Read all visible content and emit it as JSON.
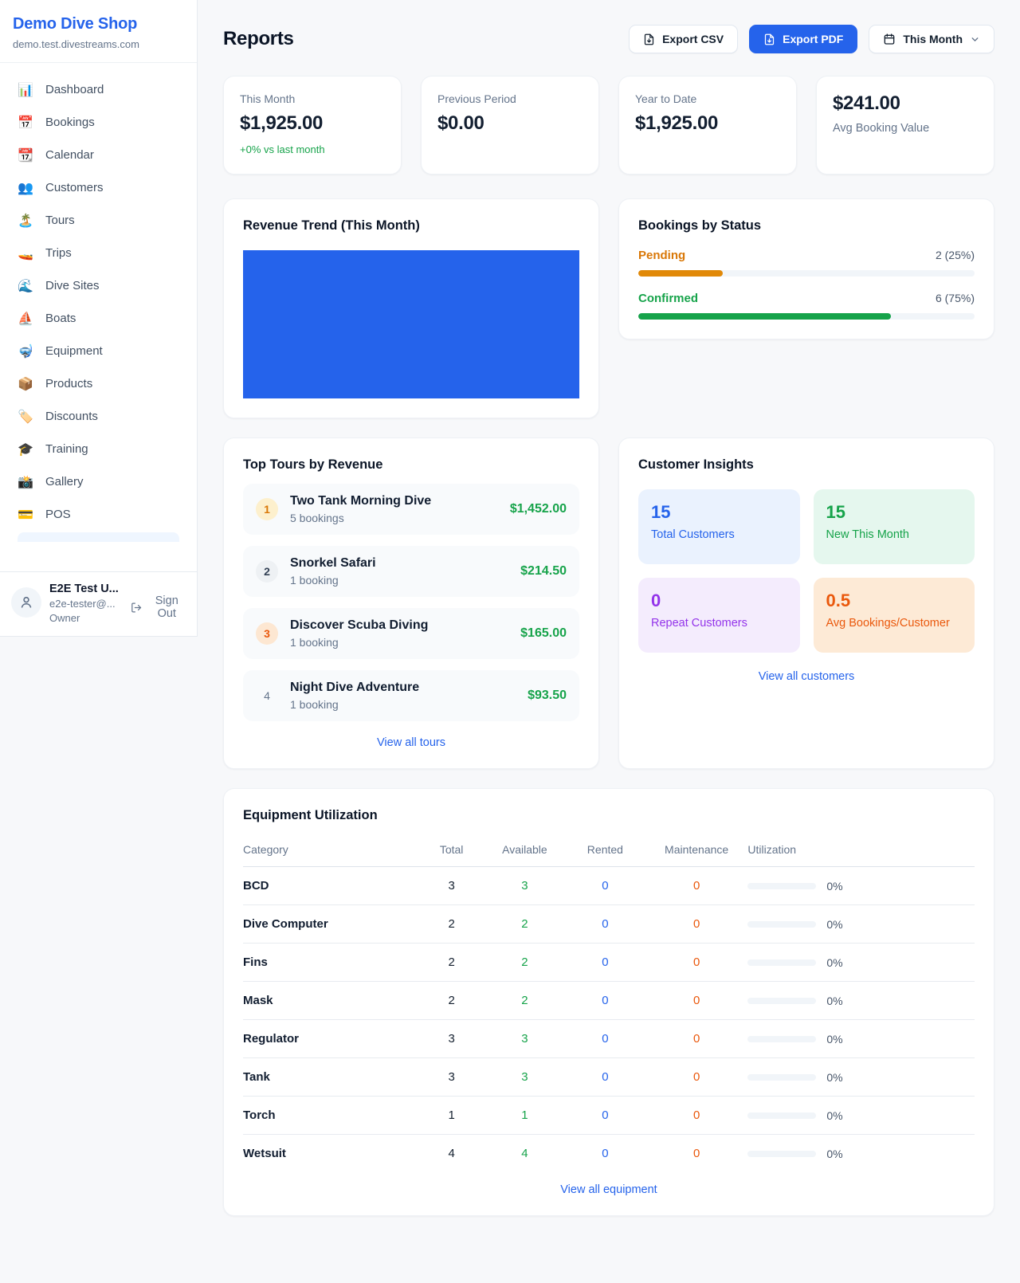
{
  "colors": {
    "brand_blue": "#2563eb",
    "green": "#16a34a",
    "amber": "#d97706",
    "orange": "#ea580c",
    "purple": "#9333ea"
  },
  "sidebar": {
    "brand": "Demo Dive Shop",
    "domain": "demo.test.divestreams.com",
    "items": [
      {
        "icon": "📊",
        "label": "Dashboard"
      },
      {
        "icon": "📅",
        "label": "Bookings"
      },
      {
        "icon": "📆",
        "label": "Calendar"
      },
      {
        "icon": "👥",
        "label": "Customers"
      },
      {
        "icon": "🏝️",
        "label": "Tours"
      },
      {
        "icon": "🚤",
        "label": "Trips"
      },
      {
        "icon": "🌊",
        "label": "Dive Sites"
      },
      {
        "icon": "⛵",
        "label": "Boats"
      },
      {
        "icon": "🤿",
        "label": "Equipment"
      },
      {
        "icon": "📦",
        "label": "Products"
      },
      {
        "icon": "🏷️",
        "label": "Discounts"
      },
      {
        "icon": "🎓",
        "label": "Training"
      },
      {
        "icon": "📸",
        "label": "Gallery"
      },
      {
        "icon": "💳",
        "label": "POS"
      }
    ],
    "user": {
      "name": "E2E Test U...",
      "email": "e2e-tester@...",
      "role": "Owner",
      "sign_out": "Sign Out"
    }
  },
  "header": {
    "title": "Reports",
    "export_csv": "Export CSV",
    "export_pdf": "Export PDF",
    "period": "This Month"
  },
  "stats": [
    {
      "label": "This Month",
      "value": "$1,925.00",
      "delta": "+0% vs last month"
    },
    {
      "label": "Previous Period",
      "value": "$0.00"
    },
    {
      "label": "Year to Date",
      "value": "$1,925.00"
    },
    {
      "label": "Avg Booking Value",
      "value": "$241.00"
    }
  ],
  "revenue_trend": {
    "title": "Revenue Trend (This Month)"
  },
  "chart_data": [
    {
      "type": "bar",
      "title": "Revenue Trend (This Month)",
      "categories": [
        "This Month"
      ],
      "values": [
        1925
      ],
      "color": "#2563eb",
      "note": "single solid bar filling entire plot area, no axes or labels visible"
    },
    {
      "type": "bar",
      "title": "Bookings by Status",
      "categories": [
        "Pending",
        "Confirmed"
      ],
      "values": [
        2,
        6
      ],
      "percentages": [
        25,
        75
      ],
      "colors": [
        "#d97706",
        "#16a34a"
      ]
    }
  ],
  "bookings_by_status": {
    "title": "Bookings by Status",
    "rows": [
      {
        "label": "Pending",
        "value": "2 (25%)",
        "pct": 25
      },
      {
        "label": "Confirmed",
        "value": "6 (75%)",
        "pct": 75
      }
    ]
  },
  "top_tours": {
    "title": "Top Tours by Revenue",
    "rows": [
      {
        "rank": "1",
        "name": "Two Tank Morning Dive",
        "bookings": "5 bookings",
        "amount": "$1,452.00"
      },
      {
        "rank": "2",
        "name": "Snorkel Safari",
        "bookings": "1 booking",
        "amount": "$214.50"
      },
      {
        "rank": "3",
        "name": "Discover Scuba Diving",
        "bookings": "1 booking",
        "amount": "$165.00"
      },
      {
        "rank": "4",
        "name": "Night Dive Adventure",
        "bookings": "1 booking",
        "amount": "$93.50"
      }
    ],
    "view_all": "View all tours"
  },
  "customer_insights": {
    "title": "Customer Insights",
    "boxes": [
      {
        "value": "15",
        "label": "Total Customers"
      },
      {
        "value": "15",
        "label": "New This Month"
      },
      {
        "value": "0",
        "label": "Repeat Customers"
      },
      {
        "value": "0.5",
        "label": "Avg Bookings/Customer"
      }
    ],
    "view_all": "View all customers"
  },
  "equipment": {
    "title": "Equipment Utilization",
    "columns": [
      "Category",
      "Total",
      "Available",
      "Rented",
      "Maintenance",
      "Utilization"
    ],
    "rows": [
      {
        "category": "BCD",
        "total": "3",
        "available": "3",
        "rented": "0",
        "maintenance": "0",
        "utilization_pct": 0,
        "utilization": "0%"
      },
      {
        "category": "Dive Computer",
        "total": "2",
        "available": "2",
        "rented": "0",
        "maintenance": "0",
        "utilization_pct": 0,
        "utilization": "0%"
      },
      {
        "category": "Fins",
        "total": "2",
        "available": "2",
        "rented": "0",
        "maintenance": "0",
        "utilization_pct": 0,
        "utilization": "0%"
      },
      {
        "category": "Mask",
        "total": "2",
        "available": "2",
        "rented": "0",
        "maintenance": "0",
        "utilization_pct": 0,
        "utilization": "0%"
      },
      {
        "category": "Regulator",
        "total": "3",
        "available": "3",
        "rented": "0",
        "maintenance": "0",
        "utilization_pct": 0,
        "utilization": "0%"
      },
      {
        "category": "Tank",
        "total": "3",
        "available": "3",
        "rented": "0",
        "maintenance": "0",
        "utilization_pct": 0,
        "utilization": "0%"
      },
      {
        "category": "Torch",
        "total": "1",
        "available": "1",
        "rented": "0",
        "maintenance": "0",
        "utilization_pct": 0,
        "utilization": "0%"
      },
      {
        "category": "Wetsuit",
        "total": "4",
        "available": "4",
        "rented": "0",
        "maintenance": "0",
        "utilization_pct": 0,
        "utilization": "0%"
      }
    ],
    "view_all": "View all equipment"
  }
}
